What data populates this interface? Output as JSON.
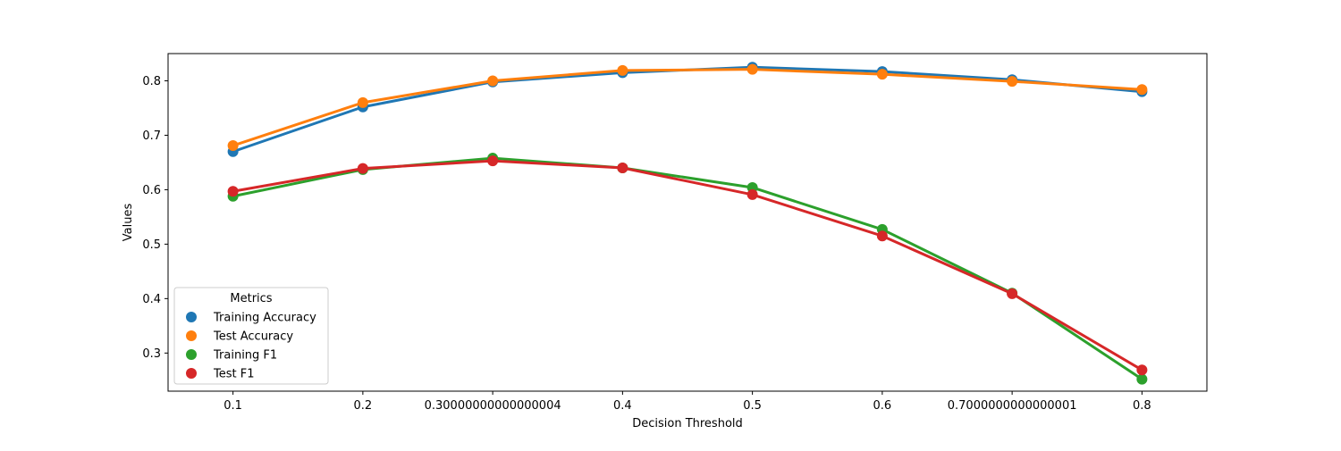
{
  "chart_data": {
    "type": "line",
    "xlabel": "Decision Threshold",
    "ylabel": "Values",
    "x": [
      "0.1",
      "0.2",
      "0.30000000000000004",
      "0.4",
      "0.5",
      "0.6",
      "0.7000000000000001",
      "0.8"
    ],
    "ylim": [
      0.23,
      0.85
    ],
    "yticks": [
      0.3,
      0.4,
      0.5,
      0.6,
      0.7,
      0.8
    ],
    "ytick_labels": [
      "0.3",
      "0.4",
      "0.5",
      "0.6",
      "0.7",
      "0.8"
    ],
    "grid": false,
    "legend": {
      "title": "Metrics",
      "placement": "lower-left"
    },
    "series": [
      {
        "name": "Training Accuracy",
        "color": "#1f77b4",
        "values": [
          0.67,
          0.752,
          0.798,
          0.815,
          0.825,
          0.817,
          0.802,
          0.78
        ]
      },
      {
        "name": "Test Accuracy",
        "color": "#ff7f0e",
        "values": [
          0.681,
          0.76,
          0.8,
          0.819,
          0.821,
          0.812,
          0.799,
          0.784
        ]
      },
      {
        "name": "Training F1",
        "color": "#2ca02c",
        "values": [
          0.588,
          0.637,
          0.658,
          0.64,
          0.604,
          0.527,
          0.41,
          0.252
        ]
      },
      {
        "name": "Test F1",
        "color": "#d62728",
        "values": [
          0.597,
          0.639,
          0.653,
          0.64,
          0.591,
          0.515,
          0.409,
          0.269
        ]
      }
    ]
  }
}
